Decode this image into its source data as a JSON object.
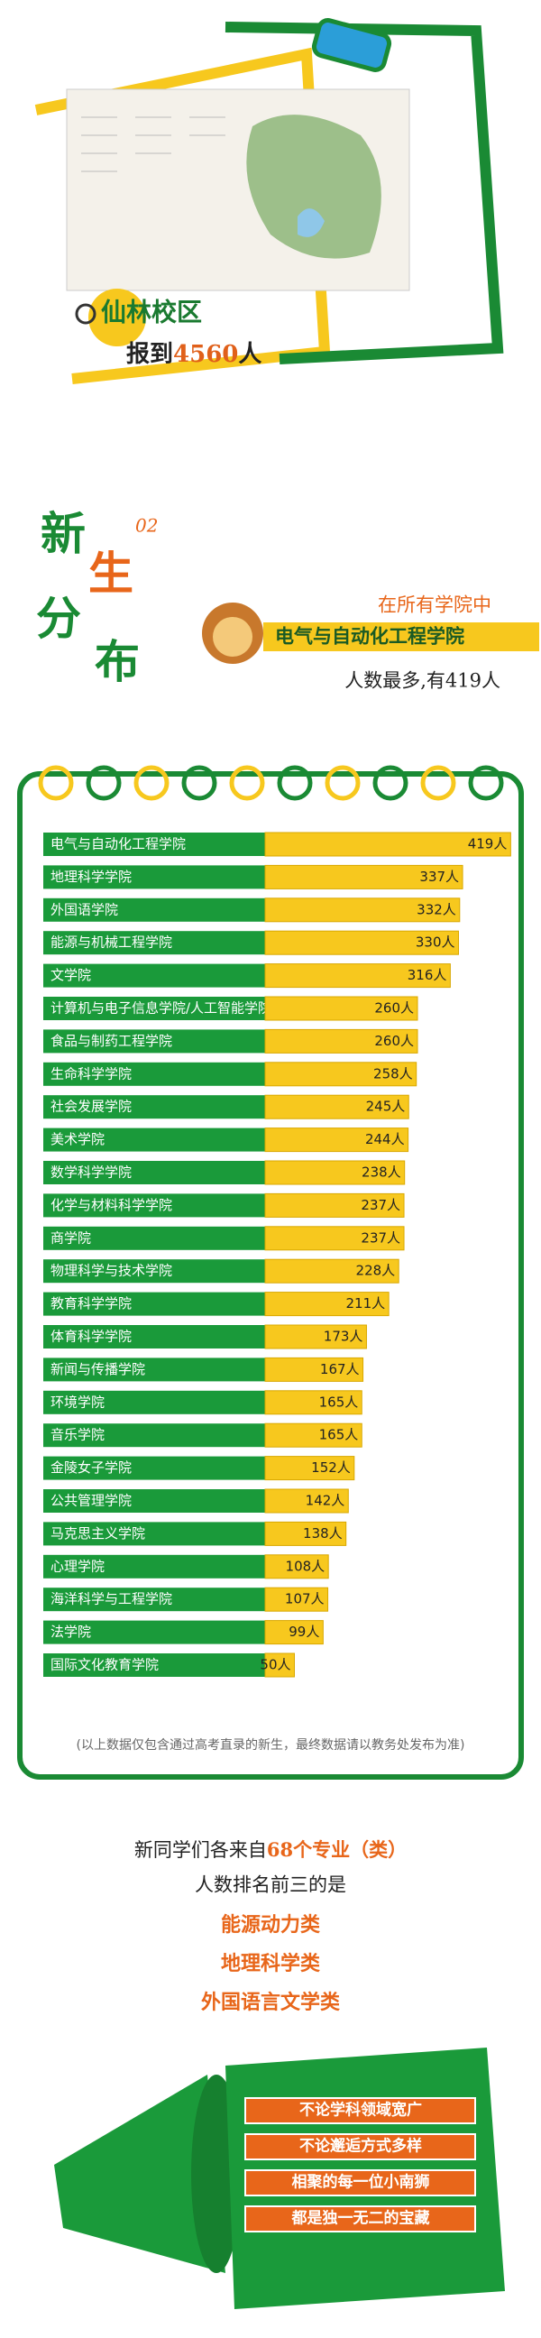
{
  "campus": {
    "name": "仙林校区",
    "report_prefix": "报到",
    "report_number": "4560",
    "report_suffix": "人"
  },
  "section": {
    "number": "02",
    "title_chars": [
      "新",
      "生",
      "分",
      "布"
    ],
    "lead": "在所有学院中",
    "top_college": "电气与自动化工程学院",
    "top_note": "人数最多,有419人"
  },
  "chart_data": {
    "type": "bar",
    "orientation": "horizontal",
    "color": "#f7c81e",
    "categories": [
      "电气与自动化工程学院",
      "地理科学学院",
      "外国语学院",
      "能源与机械工程学院",
      "文学院",
      "计算机与电子信息学院/人工智能学院",
      "食品与制药工程学院",
      "生命科学学院",
      "社会发展学院",
      "美术学院",
      "数学科学学院",
      "化学与材料科学学院",
      "商学院",
      "物理科学与技术学院",
      "教育科学学院",
      "体育科学学院",
      "新闻与传播学院",
      "环境学院",
      "音乐学院",
      "金陵女子学院",
      "公共管理学院",
      "马克思主义学院",
      "心理学院",
      "海洋科学与工程学院",
      "法学院",
      "国际文化教育学院"
    ],
    "values": [
      419,
      337,
      332,
      330,
      316,
      260,
      260,
      258,
      245,
      244,
      238,
      237,
      237,
      228,
      211,
      173,
      167,
      165,
      165,
      152,
      142,
      138,
      108,
      107,
      99,
      50
    ],
    "value_labels": [
      "419人",
      "337人",
      "332人",
      "330人",
      "316人",
      "260人",
      "260人",
      "258人",
      "245人",
      "244人",
      "238人",
      "237人",
      "237人",
      "228人",
      "211人",
      "173人",
      "167人",
      "165人",
      "165人",
      "152人",
      "142人",
      "138人",
      "108人",
      "107人",
      "99人",
      "50人"
    ],
    "note": "(以上数据仅包含通过高考直录的新生，最终数据请以教务处发布为准)"
  },
  "majors": {
    "intro_before": "新同学们各来自",
    "intro_highlight": "68个专业（类）",
    "ranking": "人数排名前三的是",
    "top3": [
      "能源动力类",
      "地理科学类",
      "外国语言文学类"
    ]
  },
  "slogans": [
    "不论学科领域宽广",
    "不论邂逅方式多样",
    "相聚的每一位小南狮",
    "都是独一无二的宝藏"
  ]
}
